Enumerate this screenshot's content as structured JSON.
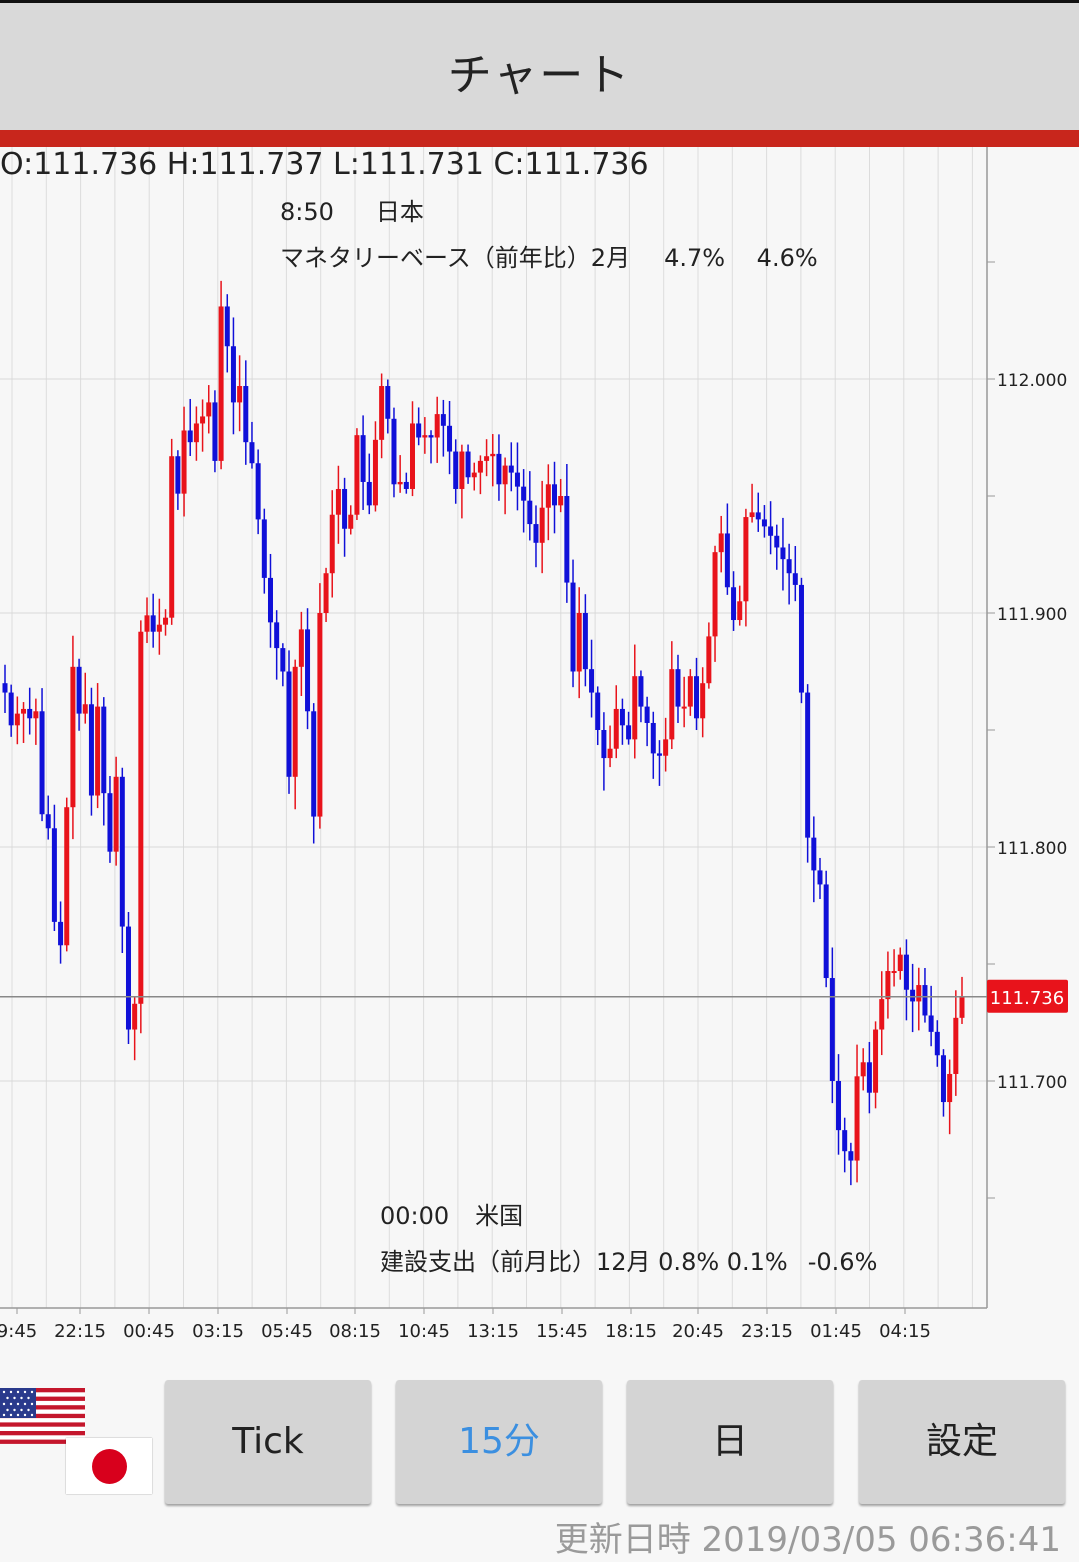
{
  "header": {
    "title": "チャート"
  },
  "ohlc": {
    "text": "O:111.736 H:111.737 L:111.731 C:111.736"
  },
  "events": [
    {
      "time": "8:50",
      "country": "日本",
      "indicator": "マネタリーベース（前年比）2月",
      "values": "4.7%　 4.6%"
    },
    {
      "time": "00:00",
      "country": "米国",
      "indicator": "建設支出（前月比）12月 0.8% 0.1%",
      "values": "-0.6%"
    }
  ],
  "buttons": [
    {
      "label": "Tick"
    },
    {
      "label": "15分"
    },
    {
      "label": "日"
    },
    {
      "label": "設定"
    }
  ],
  "updated": {
    "label": "更新日時",
    "value": "2019/03/05 06:36:41"
  },
  "chart_data": {
    "type": "candlestick",
    "ylim": [
      111.61,
      112.1
    ],
    "y_ticks": [
      112.0,
      111.9,
      111.8,
      111.7
    ],
    "y_tick_labels": [
      "112.000",
      "111.900",
      "111.800",
      "111.700"
    ],
    "x_tick_labels": [
      "9:45",
      "22:15",
      "00:45",
      "03:15",
      "05:45",
      "08:15",
      "10:45",
      "13:15",
      "15:45",
      "18:15",
      "20:45",
      "23:15",
      "01:45",
      "04:15"
    ],
    "current_price": 111.736,
    "current_price_label": "111.736",
    "colors": {
      "up": "#e8131b",
      "down": "#1010d8",
      "current_line": "#888888",
      "current_label_bg": "#e8131b"
    },
    "closes": [
      111.866,
      111.852,
      111.857,
      111.859,
      111.855,
      111.858,
      111.814,
      111.808,
      111.768,
      111.758,
      111.817,
      111.877,
      111.857,
      111.861,
      111.822,
      111.86,
      111.823,
      111.798,
      111.83,
      111.766,
      111.722,
      111.733,
      111.892,
      111.899,
      111.892,
      111.895,
      111.898,
      111.967,
      111.951,
      111.978,
      111.973,
      111.981,
      111.984,
      111.99,
      111.965,
      112.031,
      112.014,
      111.99,
      111.997,
      111.973,
      111.964,
      111.94,
      111.915,
      111.896,
      111.885,
      111.875,
      111.83,
      111.877,
      111.893,
      111.858,
      111.813,
      111.9,
      111.917,
      111.942,
      111.953,
      111.936,
      111.942,
      111.976,
      111.956,
      111.946,
      111.974,
      111.997,
      111.983,
      111.955,
      111.956,
      111.953,
      111.981,
      111.975,
      111.976,
      111.975,
      111.985,
      111.98,
      111.969,
      111.953,
      111.969,
      111.958,
      111.96,
      111.965,
      111.967,
      111.968,
      111.955,
      111.963,
      111.96,
      111.954,
      111.948,
      111.938,
      111.93,
      111.945,
      111.955,
      111.946,
      111.95,
      111.913,
      111.875,
      111.9,
      111.876,
      111.866,
      111.85,
      111.838,
      111.842,
      111.859,
      111.852,
      111.846,
      111.873,
      111.86,
      111.853,
      111.84,
      111.839,
      111.846,
      111.876,
      111.86,
      111.86,
      111.873,
      111.855,
      111.87,
      111.89,
      111.926,
      111.934,
      111.911,
      111.897,
      111.905,
      111.941,
      111.943,
      111.94,
      111.937,
      111.933,
      111.928,
      111.923,
      111.917,
      111.912,
      111.866,
      111.804,
      111.79,
      111.784,
      111.744,
      111.7,
      111.679,
      111.67,
      111.666,
      111.702,
      111.708,
      111.695,
      111.722,
      111.735,
      111.747,
      111.747,
      111.754,
      111.739,
      111.734,
      111.741,
      111.728,
      111.721,
      111.711,
      111.691,
      111.703,
      111.727,
      111.736
    ]
  }
}
